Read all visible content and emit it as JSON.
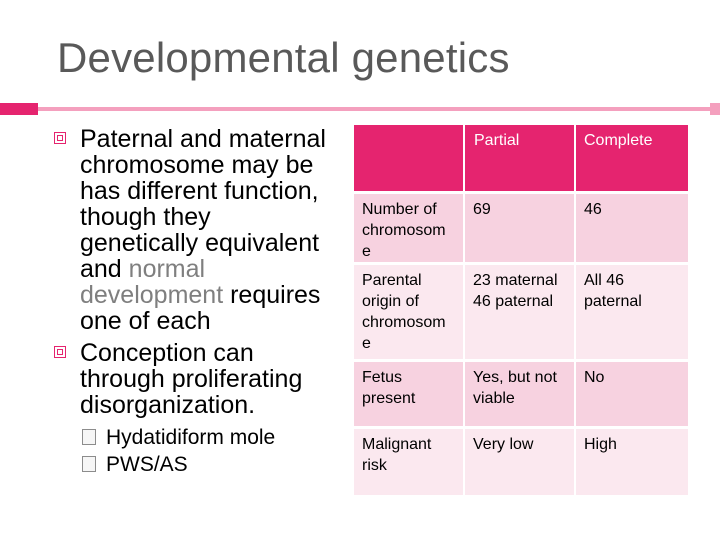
{
  "slide": {
    "title": "Developmental genetics",
    "bullets": {
      "b1_line1": "Paternal and maternal",
      "b1_line2": "chromosome may be",
      "b1_line3": "has different function,",
      "b1_line4": "though they",
      "b1_line5": "genetically equivalent",
      "b1_line6_a": "and ",
      "b1_line6_b": "normal",
      "b1_line7_a": "development",
      "b1_line7_b": " requires",
      "b1_line8": "one of each",
      "b2_line1": "Conception can",
      "b2_line2": "through proliferating",
      "b2_line3": "disorganization.",
      "sub1": "Hydatidiform mole",
      "sub2": "PWS/AS"
    },
    "table": {
      "headers": [
        "",
        "Partial",
        "Complete"
      ],
      "rows": [
        {
          "label": "Number of chromosom e",
          "partial": "69",
          "complete": "46"
        },
        {
          "label": "Parental origin of chromosom e",
          "partial": "23 maternal 46 paternal",
          "complete": "All 46 paternal"
        },
        {
          "label": "Fetus present",
          "partial": "Yes, but not viable",
          "complete": "No"
        },
        {
          "label": "Malignant risk",
          "partial": "Very low",
          "complete": "High"
        }
      ]
    },
    "colors": {
      "accent": "#e5246f",
      "row_light": "#f7d2e0",
      "row_lighter": "#fbe8ef",
      "title_gray": "#595959"
    }
  }
}
